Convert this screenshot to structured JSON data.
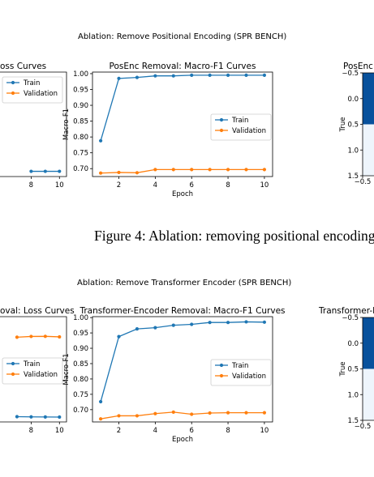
{
  "figure_top": {
    "suptitle": "Ablation: Remove Positional Encoding (SPR BENCH)",
    "caption": "Figure 4: Ablation: removing positional encoding."
  },
  "figure_bottom": {
    "suptitle": "Ablation: Remove Transformer Encoder (SPR BENCH)"
  },
  "colors": {
    "train": "#1f77b4",
    "validation": "#ff7f0e",
    "cm_dark": "#08519c",
    "cm_light": "#eef5fc"
  },
  "chart_data": [
    {
      "type": "line",
      "title": "oss Curves",
      "x": [
        8,
        9,
        10
      ],
      "series": [
        {
          "name": "Train",
          "values": [
            0.05,
            0.05,
            0.05
          ]
        },
        {
          "name": "Validation",
          "values": [
            0.812,
            0.805,
            0.81
          ]
        }
      ],
      "xticks": [
        "8",
        "10"
      ],
      "xlim": [
        5.8,
        10.5
      ],
      "ylim": [
        0,
        1
      ],
      "legend": "top-right"
    },
    {
      "type": "line",
      "title": "PosEnc Removal: Macro-F1 Curves",
      "xlabel": "Epoch",
      "ylabel": "Macro-F1",
      "x": [
        1,
        2,
        3,
        4,
        5,
        6,
        7,
        8,
        9,
        10
      ],
      "series": [
        {
          "name": "Train",
          "values": [
            0.788,
            0.985,
            0.988,
            0.993,
            0.993,
            0.995,
            0.995,
            0.995,
            0.995,
            0.995
          ]
        },
        {
          "name": "Validation",
          "values": [
            0.686,
            0.688,
            0.687,
            0.697,
            0.697,
            0.697,
            0.697,
            0.697,
            0.697,
            0.697
          ]
        }
      ],
      "yticks": [
        "0.70",
        "0.75",
        "0.80",
        "0.85",
        "0.90",
        "0.95",
        "1.00"
      ],
      "xticks": [
        "2",
        "4",
        "6",
        "8",
        "10"
      ],
      "xlim": [
        0.55,
        10.45
      ],
      "ylim": [
        0.675,
        1.005
      ],
      "legend": "center-right"
    },
    {
      "type": "heatmap",
      "title": "PosEnc",
      "ylabel": "True",
      "yticks": [
        "−0.5",
        "0.0",
        "0.5",
        "1.0",
        "1.5"
      ],
      "xticks": [
        "−0.5"
      ]
    },
    {
      "type": "line",
      "title": "oval: Loss Curves",
      "x": [
        7,
        8,
        9,
        10
      ],
      "series": [
        {
          "name": "Train",
          "values": [
            0.05,
            0.048,
            0.047,
            0.046
          ]
        },
        {
          "name": "Validation",
          "values": [
            0.805,
            0.812,
            0.813,
            0.808
          ]
        }
      ],
      "xticks": [
        "8",
        "10"
      ],
      "xlim": [
        5.8,
        10.5
      ],
      "ylim": [
        0,
        1
      ],
      "legend": "center-right"
    },
    {
      "type": "line",
      "title": "Transformer-Encoder Removal: Macro-F1 Curves",
      "xlabel": "Epoch",
      "ylabel": "Macro-F1",
      "x": [
        1,
        2,
        3,
        4,
        5,
        6,
        7,
        8,
        9,
        10
      ],
      "series": [
        {
          "name": "Train",
          "values": [
            0.726,
            0.938,
            0.963,
            0.967,
            0.975,
            0.978,
            0.984,
            0.984,
            0.986,
            0.985
          ]
        },
        {
          "name": "Validation",
          "values": [
            0.67,
            0.68,
            0.68,
            0.687,
            0.692,
            0.685,
            0.689,
            0.69,
            0.69,
            0.69
          ]
        }
      ],
      "yticks": [
        "0.70",
        "0.75",
        "0.80",
        "0.85",
        "0.90",
        "0.95",
        "1.00"
      ],
      "xticks": [
        "2",
        "4",
        "6",
        "8",
        "10"
      ],
      "xlim": [
        0.55,
        10.45
      ],
      "ylim": [
        0.66,
        1.003
      ],
      "legend": "center-right"
    },
    {
      "type": "heatmap",
      "title": "Transformer-E",
      "ylabel": "True",
      "yticks": [
        "−0.5",
        "0.0",
        "0.5",
        "1.0",
        "1.5"
      ],
      "xticks": [
        "−0.5"
      ]
    }
  ]
}
